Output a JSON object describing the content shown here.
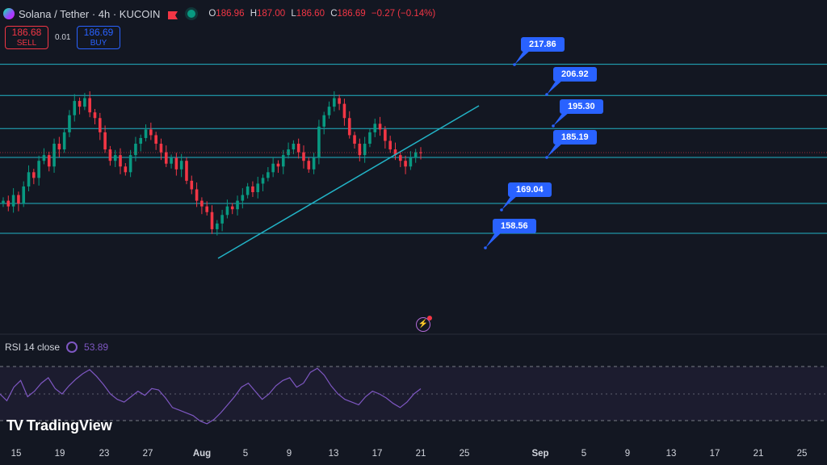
{
  "header": {
    "title": "Solana / Tether · 4h · KUCOIN",
    "ohlc": {
      "open_label": "O",
      "open": "186.96",
      "high_label": "H",
      "high": "187.00",
      "low_label": "L",
      "low": "186.60",
      "close_label": "C",
      "close": "186.69",
      "change": "−0.27 (−0.14%)"
    }
  },
  "trade": {
    "sell_price": "186.68",
    "sell_label": "SELL",
    "spread": "0.01",
    "buy_price": "186.69",
    "buy_label": "BUY"
  },
  "rsi": {
    "label": "RSI 14 close",
    "value": "53.89",
    "upper": 70,
    "mid": 50,
    "lower": 30
  },
  "brand": {
    "name": "TradingView"
  },
  "colors": {
    "background": "#131722",
    "up": "#089981",
    "down": "#f23645",
    "level_line": "#22b3c6",
    "callout": "#2962ff",
    "rsi": "#7e57c2"
  },
  "chart_data": {
    "type": "candlestick",
    "x_ticks": [
      "15",
      "19",
      "23",
      "27",
      "Aug",
      "5",
      "9",
      "13",
      "17",
      "21",
      "25",
      "Sep",
      "5",
      "9",
      "13",
      "17",
      "21",
      "25"
    ],
    "levels": [
      {
        "label": "217.86",
        "value": 217.86
      },
      {
        "label": "206.92",
        "value": 206.92
      },
      {
        "label": "195.30",
        "value": 195.3
      },
      {
        "label": "185.19",
        "value": 185.19
      },
      {
        "label": "169.04",
        "value": 169.04
      },
      {
        "label": "158.56",
        "value": 158.56
      }
    ],
    "last_price": 186.69,
    "trendline": {
      "from": {
        "date": "Aug 2",
        "price": 158
      },
      "to": {
        "date": "Aug 24",
        "price": 200
      }
    },
    "closes": [
      170,
      168,
      172,
      169,
      175,
      180,
      178,
      184,
      186,
      182,
      190,
      188,
      194,
      200,
      205,
      203,
      206,
      201,
      199,
      194,
      188,
      184,
      186,
      182,
      180,
      186,
      190,
      192,
      195,
      193,
      190,
      187,
      183,
      185,
      181,
      184,
      177,
      174,
      170,
      168,
      166,
      160,
      162,
      165,
      168,
      167,
      170,
      172,
      175,
      173,
      176,
      178,
      180,
      183,
      182,
      186,
      188,
      190,
      187,
      184,
      181,
      185,
      196,
      200,
      203,
      206,
      204,
      199,
      193,
      190,
      186,
      190,
      194,
      197,
      195,
      191,
      188,
      186,
      184,
      182,
      185,
      187,
      186.69
    ],
    "rsi_values": [
      50,
      45,
      55,
      60,
      48,
      52,
      58,
      62,
      54,
      50,
      56,
      61,
      65,
      68,
      63,
      57,
      50,
      46,
      44,
      48,
      52,
      49,
      54,
      53,
      47,
      40,
      38,
      36,
      34,
      30,
      28,
      31,
      36,
      42,
      48,
      55,
      58,
      52,
      46,
      50,
      56,
      60,
      62,
      55,
      58,
      66,
      69,
      64,
      56,
      50,
      46,
      44,
      42,
      48,
      52,
      50,
      47,
      43,
      40,
      44,
      50,
      53.89
    ]
  }
}
